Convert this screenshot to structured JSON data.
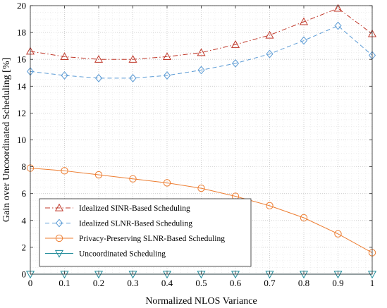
{
  "chart_data": {
    "type": "line",
    "title": "",
    "xlabel": "Normalized NLOS Variance",
    "ylabel": "Gain over Uncoordinated Scheduling [%]",
    "xlim": [
      0,
      1
    ],
    "ylim": [
      0,
      20
    ],
    "xticks": [
      "0",
      "0.1",
      "0.2",
      "0.3",
      "0.4",
      "0.5",
      "0.6",
      "0.7",
      "0.8",
      "0.9",
      "1"
    ],
    "yticks": [
      "0",
      "2",
      "4",
      "6",
      "8",
      "10",
      "12",
      "14",
      "16",
      "18",
      "20"
    ],
    "grid": "major and minor, dotted",
    "legend_position": "bottom-left",
    "x": [
      0,
      0.1,
      0.2,
      0.3,
      0.4,
      0.5,
      0.6,
      0.7,
      0.8,
      0.9,
      1.0
    ],
    "series": [
      {
        "name": "Idealized SINR-Based Scheduling",
        "values": [
          16.6,
          16.2,
          16.0,
          16.0,
          16.2,
          16.5,
          17.1,
          17.8,
          18.8,
          19.8,
          17.9
        ],
        "color": "#c0392b",
        "line": "dash-dot",
        "marker": "triangle-up"
      },
      {
        "name": "Idealized SLNR-Based Scheduling",
        "values": [
          15.1,
          14.8,
          14.6,
          14.6,
          14.8,
          15.2,
          15.7,
          16.4,
          17.4,
          18.5,
          16.3
        ],
        "color": "#5b9bd5",
        "line": "dashed",
        "marker": "diamond"
      },
      {
        "name": "Privacy-Preserving SLNR-Based Scheduling",
        "values": [
          7.9,
          7.7,
          7.4,
          7.1,
          6.8,
          6.4,
          5.8,
          5.1,
          4.2,
          3.0,
          1.6
        ],
        "color": "#ed7d31",
        "line": "solid",
        "marker": "circle"
      },
      {
        "name": "Uncoordinated Scheduling",
        "values": [
          0,
          0,
          0,
          0,
          0,
          0,
          0,
          0,
          0,
          0,
          0
        ],
        "color": "#1f8a99",
        "line": "solid",
        "marker": "triangle-down"
      }
    ]
  }
}
